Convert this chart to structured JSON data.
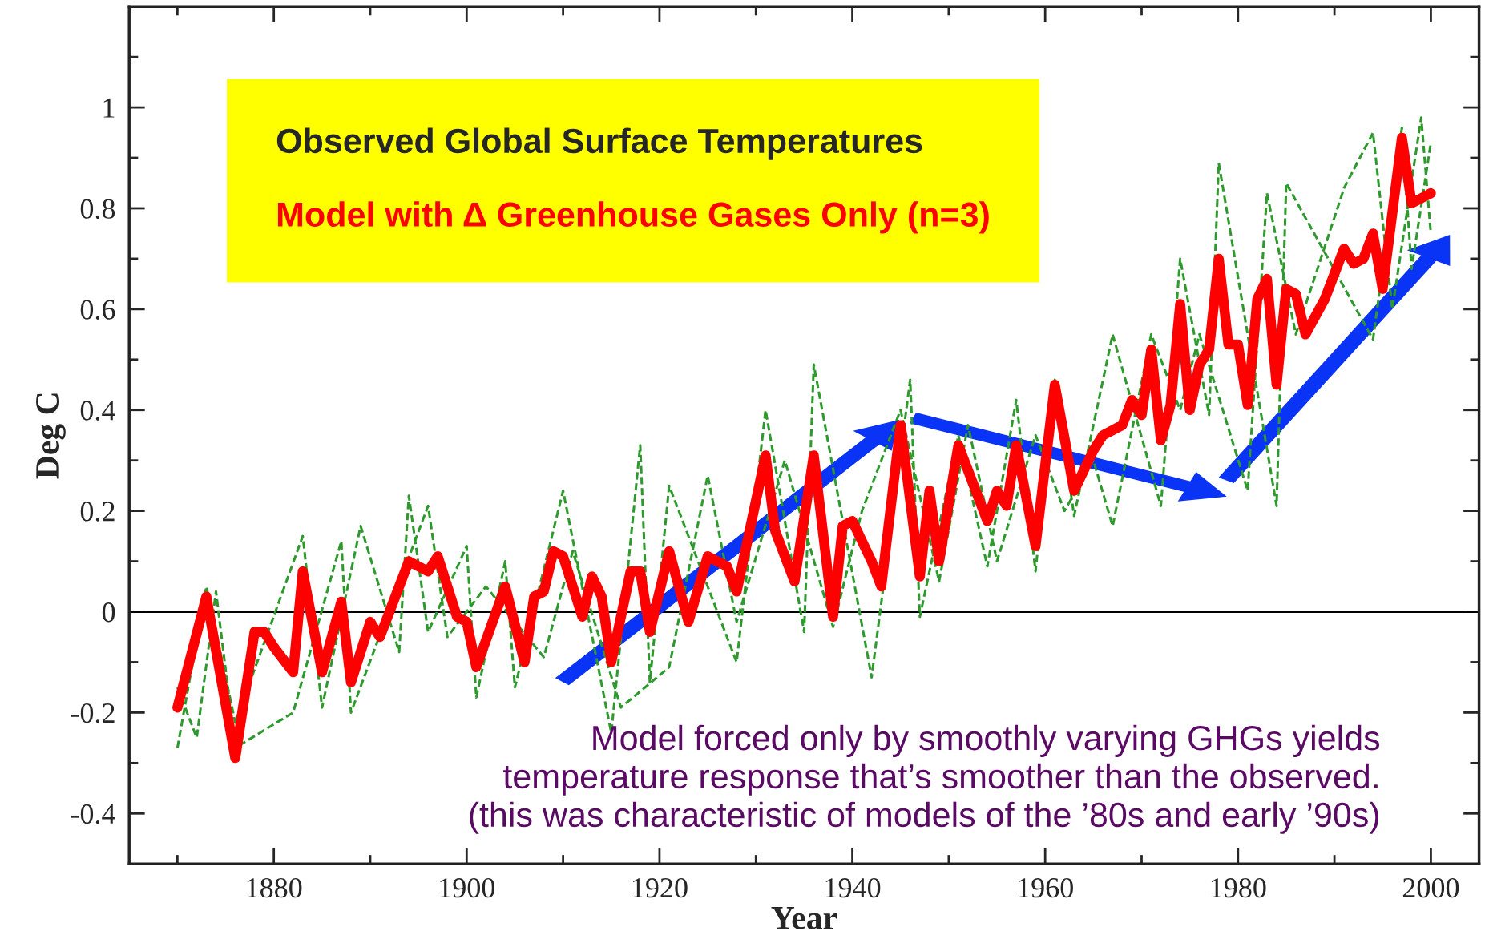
{
  "chart_data": {
    "type": "line",
    "xlabel": "Year",
    "ylabel": "Deg C",
    "legend_title": "Observed Global Surface Temperatures",
    "legend": "top left",
    "xlim": [
      1865,
      2005
    ],
    "ylim": [
      -0.5,
      1.2
    ],
    "xticks": [
      {
        "value": 1870,
        "label": null
      },
      1880,
      {
        "value": 1890,
        "label": null
      },
      1900,
      {
        "value": 1910,
        "label": null
      },
      1920,
      {
        "value": 1930,
        "label": null
      },
      1940,
      {
        "value": 1950,
        "label": null
      },
      1960,
      {
        "value": 1970,
        "label": null
      },
      1980,
      {
        "value": 1990,
        "label": null
      },
      2000
    ],
    "yticks": [
      -0.4,
      {
        "value": -0.3,
        "label": null
      },
      -0.2,
      {
        "value": -0.1,
        "label": null
      },
      0,
      {
        "value": 0.1,
        "label": null
      },
      0.2,
      {
        "value": 0.3,
        "label": null
      },
      0.4,
      {
        "value": 0.5,
        "label": null
      },
      0.6,
      {
        "value": 0.7,
        "label": null
      },
      0.8,
      {
        "value": 0.9,
        "label": null
      },
      1,
      {
        "value": 1.1,
        "label": null
      }
    ],
    "ref_lines": [
      {
        "axis": "y",
        "value": 0,
        "color": "#000000"
      }
    ],
    "series": [
      {
        "color": "#2e9a2e",
        "line_style": "dashed",
        "x": [
          1870,
          1873,
          1876,
          1883,
          1885,
          1889,
          1893,
          1894,
          1896,
          1900,
          1901,
          1904,
          1905,
          1910,
          1915,
          1918,
          1919,
          1921,
          1928,
          1931,
          1935,
          1936,
          1942,
          1946,
          1947,
          1951,
          1954,
          1957,
          1959,
          1961,
          1963,
          1967,
          1972,
          1974,
          1977,
          1978,
          1984,
          1985,
          1994,
          1997,
          1998,
          2000
        ],
        "values": [
          -0.27,
          0.05,
          -0.22,
          0.15,
          -0.19,
          0.17,
          -0.08,
          0.23,
          -0.04,
          0.13,
          -0.17,
          0.1,
          -0.15,
          0.24,
          -0.24,
          0.33,
          -0.14,
          0.25,
          -0.1,
          0.4,
          -0.04,
          0.49,
          -0.13,
          0.46,
          -0.01,
          0.35,
          0.09,
          0.42,
          0.08,
          0.46,
          0.19,
          0.55,
          0.21,
          0.7,
          0.39,
          0.89,
          0.21,
          0.85,
          0.54,
          0.96,
          0.68,
          0.93
        ]
      },
      {
        "color": "#2e9a2e",
        "line_style": "dashed",
        "x": [
          1870,
          1872,
          1874,
          1876,
          1882,
          1887,
          1888,
          1896,
          1898,
          1902,
          1908,
          1911,
          1916,
          1921,
          1925,
          1928,
          1933,
          1938,
          1941,
          1945,
          1949,
          1952,
          1955,
          1959,
          1962,
          1965,
          1967,
          1971,
          1974,
          1976,
          1981,
          1983,
          1986,
          1991,
          1994,
          1996,
          1999,
          2000
        ],
        "values": [
          -0.15,
          -0.25,
          0.04,
          -0.27,
          -0.2,
          0.14,
          -0.2,
          0.21,
          -0.05,
          0.05,
          -0.09,
          0.12,
          -0.19,
          -0.11,
          0.27,
          -0.02,
          0.3,
          -0.03,
          0.2,
          0.4,
          0.06,
          0.37,
          0.1,
          0.35,
          0.2,
          0.3,
          0.17,
          0.55,
          0.4,
          0.55,
          0.24,
          0.83,
          0.55,
          0.84,
          0.95,
          0.6,
          0.98,
          0.75
        ]
      },
      {
        "name": "Model with Δ Greenhouse Gases Only (n=3)",
        "color": "#ff0000",
        "line_style": "solid",
        "x": [
          1870,
          1873,
          1876,
          1878,
          1879,
          1880,
          1882,
          1883,
          1885,
          1887,
          1888,
          1890,
          1891,
          1894,
          1896,
          1897,
          1899,
          1900,
          1901,
          1904,
          1906,
          1907,
          1908,
          1909,
          1910,
          1912,
          1913,
          1914,
          1915,
          1917,
          1918,
          1919,
          1921,
          1923,
          1925,
          1927,
          1928,
          1931,
          1932,
          1934,
          1936,
          1938,
          1939,
          1940,
          1942,
          1943,
          1945,
          1947,
          1948,
          1949,
          1951,
          1954,
          1955,
          1956,
          1957,
          1959,
          1961,
          1963,
          1965,
          1966,
          1968,
          1969,
          1970,
          1971,
          1972,
          1973,
          1974,
          1975,
          1976,
          1977,
          1978,
          1979,
          1980,
          1981,
          1982,
          1983,
          1984,
          1985,
          1986,
          1987,
          1989,
          1991,
          1992,
          1993,
          1994,
          1995,
          1997,
          1998,
          2000
        ],
        "values": [
          -0.19,
          0.03,
          -0.29,
          -0.04,
          -0.04,
          -0.07,
          -0.12,
          0.08,
          -0.12,
          0.02,
          -0.14,
          -0.02,
          -0.05,
          0.1,
          0.08,
          0.11,
          -0.01,
          -0.02,
          -0.11,
          0.05,
          -0.1,
          0.03,
          0.04,
          0.12,
          0.11,
          -0.01,
          0.07,
          0.03,
          -0.1,
          0.08,
          0.08,
          -0.04,
          0.12,
          -0.02,
          0.11,
          0.09,
          0.04,
          0.31,
          0.16,
          0.06,
          0.31,
          -0.01,
          0.17,
          0.18,
          0.1,
          0.05,
          0.37,
          0.07,
          0.24,
          0.1,
          0.33,
          0.18,
          0.24,
          0.21,
          0.33,
          0.13,
          0.45,
          0.24,
          0.32,
          0.35,
          0.37,
          0.42,
          0.39,
          0.52,
          0.34,
          0.41,
          0.61,
          0.4,
          0.49,
          0.52,
          0.7,
          0.53,
          0.53,
          0.41,
          0.62,
          0.66,
          0.45,
          0.64,
          0.63,
          0.55,
          0.62,
          0.72,
          0.69,
          0.7,
          0.75,
          0.64,
          0.94,
          0.81,
          0.83
        ]
      }
    ],
    "annotations": [
      "Model forced only by smoothly varying GHGs yields\ntemperature response that’s smoother than the observed.\n(this was characteristic of models of the ’80s and early ’90s)"
    ]
  }
}
